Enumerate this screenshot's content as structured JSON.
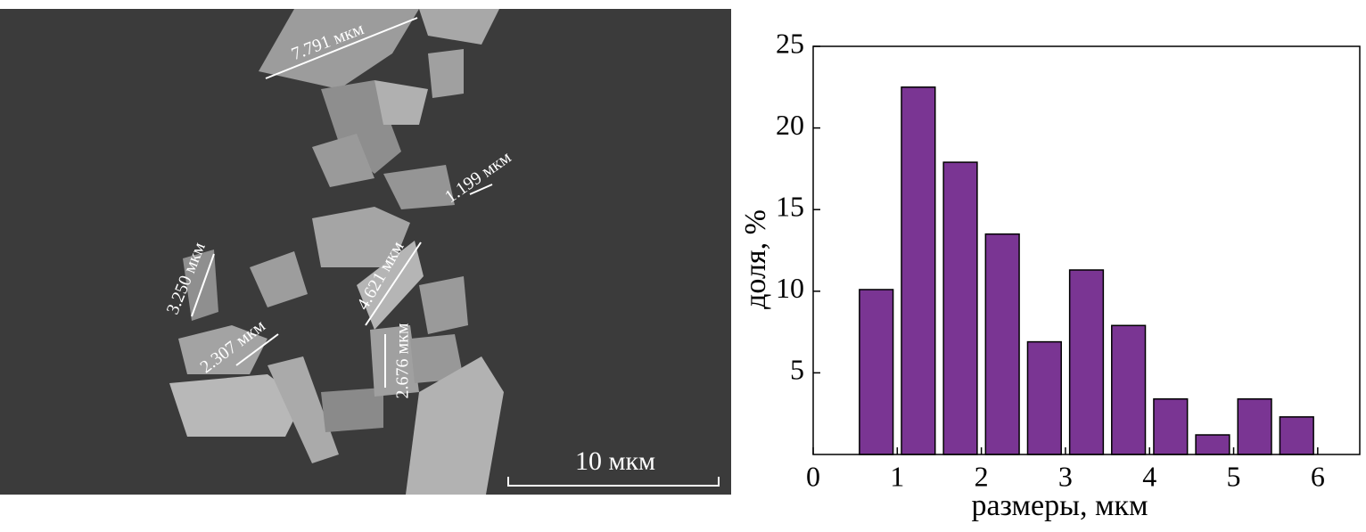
{
  "image": {
    "annotations": [
      "7.791 мкм",
      "1.199 мкм",
      "3.250 мкм",
      "4.621 мкм",
      "2.307 мкм",
      "2.676 мкм"
    ],
    "scale_bar": "10 мкм"
  },
  "chart_data": {
    "type": "histogram",
    "x_label": "размеры, мкм",
    "y_label": "доля, %",
    "bins": [
      0.5,
      1,
      1.5,
      2,
      2.5,
      3,
      3.5,
      4,
      4.5,
      5,
      5.5,
      6
    ],
    "values": [
      10.1,
      22.5,
      17.9,
      13.5,
      6.9,
      11.3,
      7.9,
      3.4,
      1.2,
      3.4,
      2.3
    ],
    "color": "#7a3593",
    "xlim": [
      0,
      6.5
    ],
    "xticks": [
      0,
      1,
      2,
      3,
      4,
      5,
      6
    ],
    "ylim": [
      0,
      25
    ],
    "yticks": [
      5,
      10,
      15,
      20,
      25
    ]
  }
}
